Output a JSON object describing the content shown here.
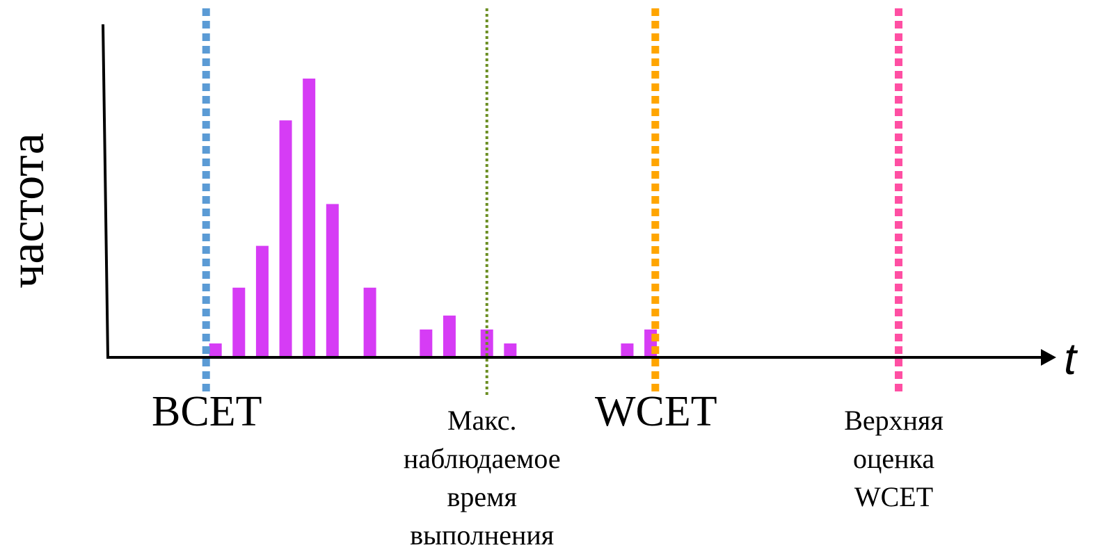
{
  "chart_data": {
    "type": "bar",
    "xlabel": "t",
    "ylabel": "частота",
    "xlim": [
      0,
      100
    ],
    "ylim": [
      0,
      100
    ],
    "grid": false,
    "legend": "none",
    "bar_color": "#d63cf5",
    "bars": [
      {
        "x": 11.5,
        "value": 5
      },
      {
        "x": 14.0,
        "value": 25
      },
      {
        "x": 16.5,
        "value": 40
      },
      {
        "x": 19.0,
        "value": 85
      },
      {
        "x": 21.5,
        "value": 100
      },
      {
        "x": 24.0,
        "value": 55
      },
      {
        "x": 28.0,
        "value": 25
      },
      {
        "x": 34.0,
        "value": 10
      },
      {
        "x": 36.5,
        "value": 15
      },
      {
        "x": 40.5,
        "value": 10
      },
      {
        "x": 43.0,
        "value": 5
      },
      {
        "x": 55.5,
        "value": 5
      },
      {
        "x": 58.0,
        "value": 10
      }
    ],
    "markers": [
      {
        "x": 10.5,
        "lines": [
          "BCET"
        ],
        "color": "#5b9bd5",
        "style": "dotted-thick",
        "size": "large"
      },
      {
        "x": 40.5,
        "lines": [
          "Макс.",
          "наблюдаемое",
          "время",
          "выполнения"
        ],
        "color": "#6b8e23",
        "style": "dotted-thin",
        "size": "small"
      },
      {
        "x": 58.5,
        "lines": [
          "WCET"
        ],
        "color": "#ffa500",
        "style": "dotted-thick",
        "size": "large"
      },
      {
        "x": 84.5,
        "lines": [
          "Верхняя",
          "оценка",
          "WCET"
        ],
        "color": "#ff4fa3",
        "style": "dotted-thick",
        "size": "small"
      }
    ]
  }
}
